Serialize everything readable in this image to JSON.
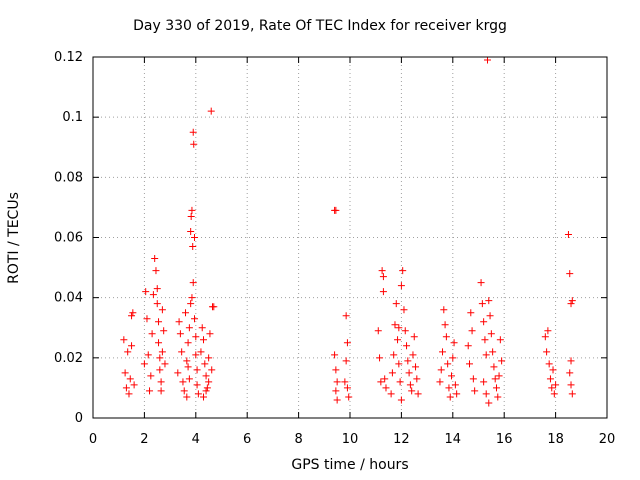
{
  "chart_data": {
    "type": "scatter",
    "title": "Day 330 of 2019, Rate Of TEC Index for receiver krgg",
    "xlabel": "GPS time / hours",
    "ylabel": "ROTI / TECUs",
    "xlim": [
      0,
      20
    ],
    "ylim": [
      0,
      0.12
    ],
    "xticks": [
      "0",
      "2",
      "4",
      "6",
      "8",
      "10",
      "12",
      "14",
      "16",
      "18",
      "20"
    ],
    "yticks": [
      "0",
      "0.02",
      "0.04",
      "0.06",
      "0.08",
      "0.1",
      "0.12"
    ],
    "grid": true,
    "marker": "+",
    "color": "#ff0000",
    "series": [
      {
        "name": "ROTI",
        "points": [
          [
            1.2,
            0.026
          ],
          [
            1.25,
            0.015
          ],
          [
            1.3,
            0.01
          ],
          [
            1.35,
            0.022
          ],
          [
            1.4,
            0.008
          ],
          [
            1.45,
            0.013
          ],
          [
            1.5,
            0.034
          ],
          [
            1.55,
            0.035
          ],
          [
            1.5,
            0.024
          ],
          [
            1.6,
            0.011
          ],
          [
            2.0,
            0.018
          ],
          [
            2.05,
            0.042
          ],
          [
            2.1,
            0.033
          ],
          [
            2.15,
            0.021
          ],
          [
            2.2,
            0.009
          ],
          [
            2.25,
            0.014
          ],
          [
            2.3,
            0.028
          ],
          [
            2.35,
            0.041
          ],
          [
            2.4,
            0.053
          ],
          [
            2.45,
            0.049
          ],
          [
            2.5,
            0.043
          ],
          [
            2.5,
            0.038
          ],
          [
            2.55,
            0.032
          ],
          [
            2.55,
            0.025
          ],
          [
            2.6,
            0.02
          ],
          [
            2.6,
            0.016
          ],
          [
            2.65,
            0.012
          ],
          [
            2.65,
            0.009
          ],
          [
            2.7,
            0.022
          ],
          [
            2.7,
            0.036
          ],
          [
            2.75,
            0.029
          ],
          [
            2.8,
            0.018
          ],
          [
            3.3,
            0.015
          ],
          [
            3.35,
            0.032
          ],
          [
            3.4,
            0.028
          ],
          [
            3.45,
            0.022
          ],
          [
            3.5,
            0.012
          ],
          [
            3.55,
            0.009
          ],
          [
            3.6,
            0.035
          ],
          [
            3.65,
            0.019
          ],
          [
            3.7,
            0.025
          ],
          [
            3.75,
            0.03
          ],
          [
            3.8,
            0.062
          ],
          [
            3.82,
            0.067
          ],
          [
            3.85,
            0.069
          ],
          [
            3.88,
            0.057
          ],
          [
            3.9,
            0.095
          ],
          [
            3.92,
            0.091
          ],
          [
            3.95,
            0.06
          ],
          [
            3.9,
            0.045
          ],
          [
            3.85,
            0.04
          ],
          [
            3.8,
            0.038
          ],
          [
            3.95,
            0.033
          ],
          [
            4.0,
            0.027
          ],
          [
            4.0,
            0.021
          ],
          [
            4.05,
            0.016
          ],
          [
            4.05,
            0.011
          ],
          [
            4.1,
            0.008
          ],
          [
            3.75,
            0.013
          ],
          [
            3.7,
            0.017
          ],
          [
            3.65,
            0.007
          ],
          [
            4.2,
            0.022
          ],
          [
            4.25,
            0.03
          ],
          [
            4.3,
            0.026
          ],
          [
            4.35,
            0.018
          ],
          [
            4.4,
            0.014
          ],
          [
            4.45,
            0.01
          ],
          [
            4.5,
            0.02
          ],
          [
            4.55,
            0.028
          ],
          [
            4.6,
            0.102
          ],
          [
            4.62,
            0.016
          ],
          [
            4.65,
            0.037
          ],
          [
            4.7,
            0.037
          ],
          [
            4.5,
            0.012
          ],
          [
            4.4,
            0.009
          ],
          [
            4.3,
            0.007
          ],
          [
            9.4,
            0.069
          ],
          [
            9.45,
            0.069
          ],
          [
            9.4,
            0.021
          ],
          [
            9.45,
            0.016
          ],
          [
            9.5,
            0.012
          ],
          [
            9.45,
            0.009
          ],
          [
            9.5,
            0.006
          ],
          [
            9.8,
            0.012
          ],
          [
            9.85,
            0.034
          ],
          [
            9.9,
            0.025
          ],
          [
            9.85,
            0.019
          ],
          [
            9.9,
            0.01
          ],
          [
            9.95,
            0.007
          ],
          [
            11.1,
            0.029
          ],
          [
            11.15,
            0.02
          ],
          [
            11.2,
            0.012
          ],
          [
            11.25,
            0.049
          ],
          [
            11.3,
            0.047
          ],
          [
            11.3,
            0.042
          ],
          [
            11.35,
            0.013
          ],
          [
            11.4,
            0.01
          ],
          [
            11.6,
            0.008
          ],
          [
            11.65,
            0.015
          ],
          [
            11.7,
            0.021
          ],
          [
            11.75,
            0.031
          ],
          [
            11.8,
            0.038
          ],
          [
            11.85,
            0.026
          ],
          [
            11.9,
            0.018
          ],
          [
            11.95,
            0.012
          ],
          [
            12.0,
            0.044
          ],
          [
            12.05,
            0.049
          ],
          [
            12.1,
            0.036
          ],
          [
            12.15,
            0.029
          ],
          [
            12.2,
            0.024
          ],
          [
            12.25,
            0.019
          ],
          [
            12.3,
            0.015
          ],
          [
            12.35,
            0.011
          ],
          [
            12.4,
            0.009
          ],
          [
            12.45,
            0.021
          ],
          [
            12.5,
            0.027
          ],
          [
            12.55,
            0.017
          ],
          [
            12.6,
            0.013
          ],
          [
            12.65,
            0.008
          ],
          [
            12.0,
            0.006
          ],
          [
            11.9,
            0.03
          ],
          [
            13.5,
            0.012
          ],
          [
            13.55,
            0.016
          ],
          [
            13.6,
            0.022
          ],
          [
            13.65,
            0.036
          ],
          [
            13.7,
            0.031
          ],
          [
            13.75,
            0.027
          ],
          [
            13.8,
            0.018
          ],
          [
            13.85,
            0.01
          ],
          [
            13.9,
            0.007
          ],
          [
            13.95,
            0.014
          ],
          [
            14.0,
            0.02
          ],
          [
            14.05,
            0.025
          ],
          [
            14.1,
            0.011
          ],
          [
            14.15,
            0.008
          ],
          [
            14.6,
            0.024
          ],
          [
            14.65,
            0.018
          ],
          [
            14.7,
            0.035
          ],
          [
            14.75,
            0.029
          ],
          [
            14.8,
            0.013
          ],
          [
            14.85,
            0.009
          ],
          [
            15.1,
            0.045
          ],
          [
            15.15,
            0.038
          ],
          [
            15.2,
            0.032
          ],
          [
            15.25,
            0.026
          ],
          [
            15.3,
            0.021
          ],
          [
            15.35,
            0.119
          ],
          [
            15.4,
            0.039
          ],
          [
            15.45,
            0.034
          ],
          [
            15.5,
            0.028
          ],
          [
            15.55,
            0.022
          ],
          [
            15.6,
            0.017
          ],
          [
            15.65,
            0.013
          ],
          [
            15.7,
            0.01
          ],
          [
            15.75,
            0.007
          ],
          [
            15.8,
            0.014
          ],
          [
            15.85,
            0.026
          ],
          [
            15.9,
            0.019
          ],
          [
            15.2,
            0.012
          ],
          [
            15.3,
            0.008
          ],
          [
            15.4,
            0.005
          ],
          [
            17.6,
            0.027
          ],
          [
            17.65,
            0.022
          ],
          [
            17.7,
            0.029
          ],
          [
            17.75,
            0.018
          ],
          [
            17.8,
            0.013
          ],
          [
            17.85,
            0.01
          ],
          [
            17.9,
            0.016
          ],
          [
            17.95,
            0.008
          ],
          [
            18.0,
            0.011
          ],
          [
            18.5,
            0.061
          ],
          [
            18.55,
            0.048
          ],
          [
            18.6,
            0.038
          ],
          [
            18.65,
            0.039
          ],
          [
            18.6,
            0.019
          ],
          [
            18.55,
            0.015
          ],
          [
            18.6,
            0.011
          ],
          [
            18.65,
            0.008
          ]
        ]
      }
    ]
  }
}
